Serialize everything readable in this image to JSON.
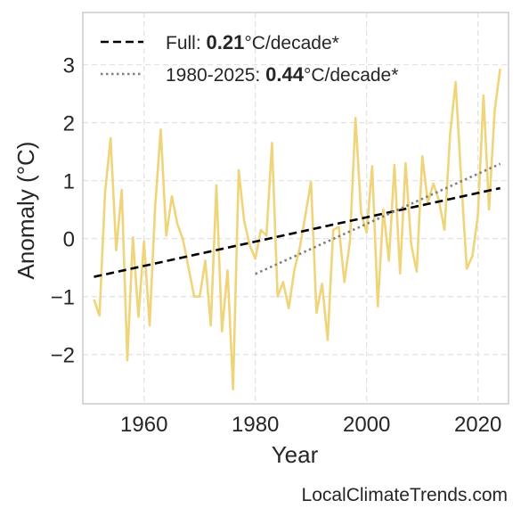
{
  "chart_data": {
    "type": "line",
    "xlabel": "Year",
    "ylabel": "Anomaly (°C)",
    "xlim": [
      1949,
      2025.5
    ],
    "ylim": [
      -2.85,
      3.9
    ],
    "xticks": [
      1960,
      1980,
      2000,
      2020
    ],
    "yticks": [
      -2,
      -1,
      0,
      1,
      2,
      3
    ],
    "ytick_labels": [
      "−2",
      "−1",
      "0",
      "1",
      "2",
      "3"
    ],
    "grid": true,
    "legend_position": "upper-left",
    "colors": {
      "series": "#f0d47a",
      "full_trend": "#000000",
      "recent_trend": "#808080"
    },
    "series": [
      {
        "x": [
          1951,
          1952,
          1953,
          1954,
          1955,
          1956,
          1957,
          1958,
          1959,
          1960,
          1961,
          1962,
          1963,
          1964,
          1965,
          1966,
          1967,
          1968,
          1969,
          1970,
          1971,
          1972,
          1973,
          1974,
          1975,
          1976,
          1977,
          1978,
          1979,
          1980,
          1981,
          1982,
          1983,
          1984,
          1985,
          1986,
          1987,
          1988,
          1989,
          1990,
          1991,
          1992,
          1993,
          1994,
          1995,
          1996,
          1997,
          1998,
          1999,
          2000,
          2001,
          2002,
          2003,
          2004,
          2005,
          2006,
          2007,
          2008,
          2009,
          2010,
          2011,
          2012,
          2013,
          2014,
          2015,
          2016,
          2017,
          2018,
          2019,
          2020,
          2021,
          2022,
          2023,
          2024
        ],
        "values": [
          -1.05,
          -1.33,
          0.8,
          1.73,
          -0.2,
          0.84,
          -2.1,
          0.02,
          -1.35,
          -0.05,
          -1.5,
          0.55,
          1.88,
          0.05,
          0.73,
          0.25,
          -0.02,
          -0.5,
          -1.0,
          -1.0,
          -0.38,
          -1.5,
          0.92,
          -1.6,
          -0.55,
          -2.6,
          1.18,
          0.3,
          -0.12,
          -0.35,
          0.15,
          0.05,
          1.65,
          -1.0,
          -0.75,
          -1.2,
          -0.55,
          -0.15,
          0.4,
          0.98,
          -1.28,
          -0.78,
          -1.75,
          0.15,
          0.2,
          -0.75,
          -0.05,
          2.08,
          0.45,
          0.1,
          1.25,
          -1.17,
          0.5,
          -0.38,
          1.27,
          -0.6,
          1.3,
          -0.1,
          -0.57,
          1.42,
          0.62,
          0.95,
          0.65,
          0.15,
          1.8,
          2.7,
          1.0,
          -0.52,
          -0.3,
          0.4,
          2.47,
          0.5,
          2.2,
          2.93
        ]
      }
    ],
    "trends": [
      {
        "style": "dashed",
        "x": [
          1951,
          2024
        ],
        "y": [
          -0.66,
          0.87
        ],
        "label_prefix": "Full: ",
        "label_value": "0.21",
        "label_suffix": "°C/decade*"
      },
      {
        "style": "dotted",
        "x": [
          1980,
          2024
        ],
        "y": [
          -0.61,
          1.29
        ],
        "label_prefix": "1980-2025: ",
        "label_value": "0.44",
        "label_suffix": "°C/decade*"
      }
    ]
  },
  "footer": {
    "credit": "LocalClimateTrends.com"
  }
}
